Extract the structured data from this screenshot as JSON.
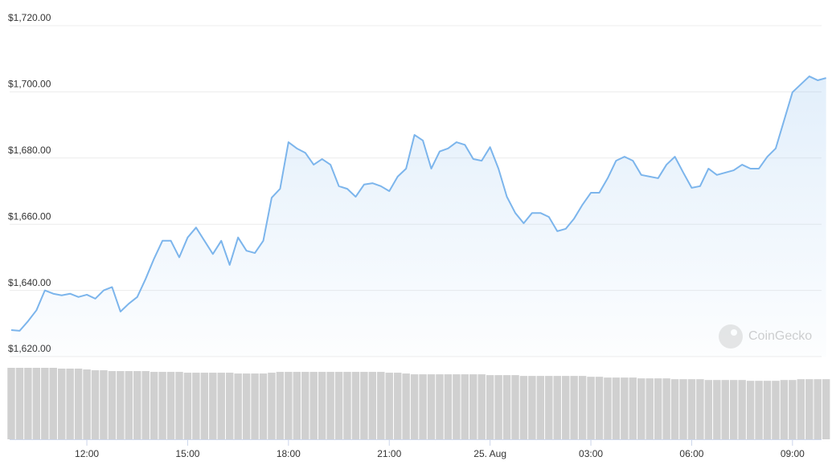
{
  "chart_data": {
    "type": "line",
    "watermark": "CoinGecko",
    "categories": [
      null,
      null,
      null,
      null,
      null,
      null,
      null,
      null,
      null,
      "12:00",
      null,
      null,
      null,
      null,
      null,
      null,
      null,
      null,
      null,
      null,
      null,
      "15:00",
      null,
      null,
      null,
      null,
      null,
      null,
      null,
      null,
      null,
      null,
      null,
      "18:00",
      null,
      null,
      null,
      null,
      null,
      null,
      null,
      null,
      null,
      null,
      null,
      "21:00",
      null,
      null,
      null,
      null,
      null,
      null,
      null,
      null,
      null,
      null,
      null,
      "25. Aug",
      null,
      null,
      null,
      null,
      null,
      null,
      null,
      null,
      null,
      null,
      null,
      "03:00",
      null,
      null,
      null,
      null,
      null,
      null,
      null,
      null,
      null,
      null,
      null,
      "06:00",
      null,
      null,
      null,
      null,
      null,
      null,
      null,
      null,
      null,
      null,
      null,
      "09:00",
      null,
      null,
      null,
      null
    ],
    "series": [
      {
        "color": "#7cb5ec",
        "values": [
          1628,
          1627.8,
          1630.7,
          1634,
          1640,
          1639,
          1638.5,
          1639,
          1638,
          1638.7,
          1637.5,
          1640,
          1641,
          1633.6,
          1636,
          1638,
          1643.5,
          1649.6,
          1655,
          1655,
          1650,
          1656,
          1659,
          1655,
          1651,
          1655,
          1647.7,
          1656,
          1652,
          1651.3,
          1655,
          1668,
          1670.7,
          1684.8,
          1682.9,
          1681.6,
          1678,
          1679.7,
          1678,
          1671.5,
          1670.7,
          1668.3,
          1672,
          1672.4,
          1671.5,
          1670,
          1674.4,
          1676.8,
          1687,
          1685.3,
          1676.8,
          1682,
          1682.9,
          1684.8,
          1684,
          1679.7,
          1679.2,
          1683.3,
          1676.8,
          1668.3,
          1663.4,
          1660.3,
          1663.4,
          1663.4,
          1662.2,
          1657.9,
          1658.6,
          1661.7,
          1665.9,
          1669.5,
          1669.5,
          1673.9,
          1679.2,
          1680.4,
          1679.2,
          1674.9,
          1674.4,
          1673.9,
          1678,
          1680.4,
          1675.6,
          1671,
          1671.5,
          1676.8,
          1674.9,
          1675.6,
          1676.3,
          1678,
          1676.8,
          1676.8,
          1680.4,
          1682.9,
          1691.4,
          1699.9,
          1702.3,
          1704.7,
          1703.5,
          1704.2
        ]
      }
    ],
    "volume": {
      "color": "#d0d0d0",
      "values": [
        88,
        88,
        88,
        88,
        88,
        88,
        87,
        87,
        87,
        86,
        85,
        85,
        84,
        84,
        84,
        84,
        84,
        83,
        83,
        83,
        83,
        82,
        82,
        82,
        82,
        82,
        82,
        81,
        81,
        81,
        81,
        82,
        83,
        83,
        83,
        83,
        83,
        83,
        83,
        83,
        83,
        83,
        83,
        83,
        83,
        82,
        82,
        81,
        80,
        80,
        80,
        80,
        80,
        80,
        80,
        80,
        80,
        79,
        79,
        79,
        79,
        78,
        78,
        78,
        78,
        78,
        78,
        78,
        78,
        77,
        77,
        76,
        76,
        76,
        76,
        75,
        75,
        75,
        75,
        74,
        74,
        74,
        74,
        73,
        73,
        73,
        73,
        73,
        72,
        72,
        72,
        72,
        73,
        73,
        74,
        74,
        74,
        74
      ]
    },
    "ylim": [
      1620,
      1720
    ],
    "yticks": [
      {
        "value": 1620,
        "label": "$1,620.00"
      },
      {
        "value": 1640,
        "label": "$1,640.00"
      },
      {
        "value": 1660,
        "label": "$1,660.00"
      },
      {
        "value": 1680,
        "label": "$1,680.00"
      },
      {
        "value": 1700,
        "label": "$1,700.00"
      },
      {
        "value": 1720,
        "label": "$1,720.00"
      }
    ],
    "grid": true
  }
}
